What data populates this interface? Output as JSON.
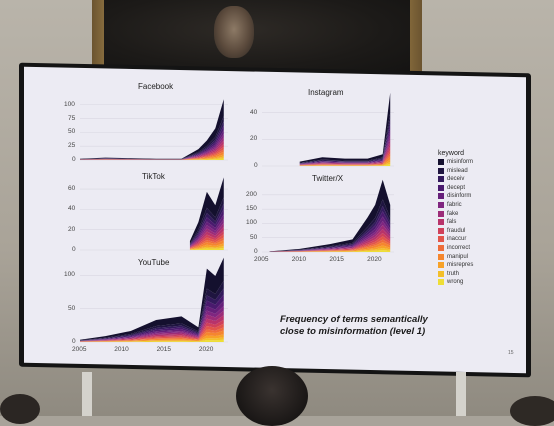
{
  "slide": {
    "caption": "Frequency of terms semantically close to misinformation (level 1)",
    "page_number": "15"
  },
  "legend": {
    "title": "keyword",
    "items": [
      {
        "label": "misinform",
        "color": "#14102e"
      },
      {
        "label": "mislead",
        "color": "#1f1540"
      },
      {
        "label": "deceiv",
        "color": "#331a5c"
      },
      {
        "label": "decept",
        "color": "#4a1a6e"
      },
      {
        "label": "disinform",
        "color": "#66207a"
      },
      {
        "label": "fabric",
        "color": "#802680"
      },
      {
        "label": "fake",
        "color": "#9c2c78"
      },
      {
        "label": "fals",
        "color": "#b8336a"
      },
      {
        "label": "fraudul",
        "color": "#d0405a"
      },
      {
        "label": "inaccur",
        "color": "#e2554a"
      },
      {
        "label": "incorrect",
        "color": "#ee6d3a"
      },
      {
        "label": "manipul",
        "color": "#f5862e"
      },
      {
        "label": "misrepres",
        "color": "#f7a228"
      },
      {
        "label": "truth",
        "color": "#f3bf2a"
      },
      {
        "label": "wrong",
        "color": "#eede36"
      }
    ]
  },
  "chart_data": [
    {
      "type": "area",
      "title": "Facebook",
      "x": [
        2005,
        2008,
        2011,
        2014,
        2017,
        2019,
        2020,
        2021,
        2022
      ],
      "y_total": [
        2,
        4,
        3,
        2,
        2,
        18,
        32,
        52,
        100
      ],
      "yticks": [
        0,
        25,
        50,
        75,
        100
      ]
    },
    {
      "type": "area",
      "title": "Instagram",
      "x": [
        2010,
        2013,
        2016,
        2019,
        2021,
        2022
      ],
      "y_total": [
        3,
        6,
        5,
        5,
        8,
        50
      ],
      "yticks": [
        0,
        20,
        40
      ]
    },
    {
      "type": "area",
      "title": "TikTok",
      "x": [
        2018,
        2019,
        2020,
        2021,
        2022
      ],
      "y_total": [
        8,
        25,
        52,
        40,
        65
      ],
      "yticks": [
        0,
        20,
        40,
        60
      ]
    },
    {
      "type": "area",
      "title": "Twitter/X",
      "x": [
        2006,
        2010,
        2014,
        2017,
        2019,
        2020,
        2021,
        2022
      ],
      "y_total": [
        2,
        10,
        25,
        40,
        110,
        150,
        230,
        150
      ],
      "yticks": [
        0,
        50,
        100,
        150,
        200
      ],
      "xticks": [
        2005,
        2010,
        2015,
        2020
      ]
    },
    {
      "type": "area",
      "title": "YouTube",
      "x": [
        2005,
        2008,
        2011,
        2014,
        2017,
        2019,
        2020,
        2021,
        2022
      ],
      "y_total": [
        3,
        8,
        15,
        30,
        35,
        20,
        100,
        90,
        115
      ],
      "yticks": [
        0,
        50,
        100
      ],
      "xticks": [
        2005,
        2010,
        2015,
        2020
      ]
    }
  ]
}
